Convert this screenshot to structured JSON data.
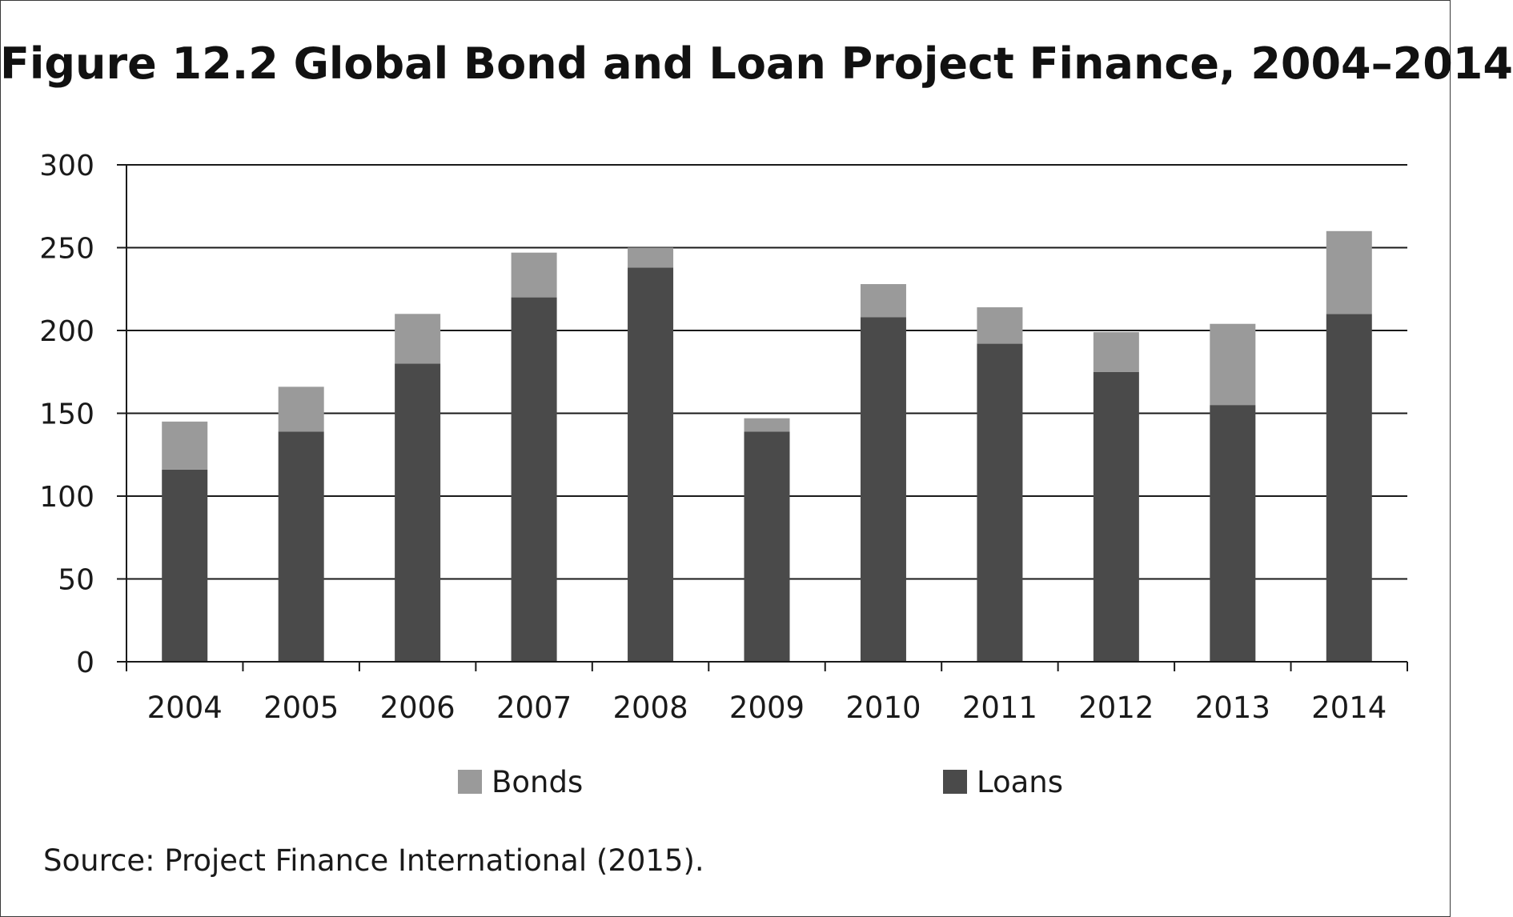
{
  "chart_data": {
    "type": "bar",
    "stacked": true,
    "title": "Figure 12.2   Global Bond and Loan Project Finance, 2004–2014",
    "xlabel": "",
    "ylabel": "",
    "ylim": [
      0,
      300
    ],
    "yticks": [
      0,
      50,
      100,
      150,
      200,
      250,
      300
    ],
    "grid": true,
    "legend_position": "bottom",
    "categories": [
      "2004",
      "2005",
      "2006",
      "2007",
      "2008",
      "2009",
      "2010",
      "2011",
      "2012",
      "2013",
      "2014"
    ],
    "series": [
      {
        "name": "Loans",
        "color": "#4a4a4a",
        "values": [
          116,
          139,
          180,
          220,
          238,
          139,
          208,
          192,
          175,
          155,
          210
        ]
      },
      {
        "name": "Bonds",
        "color": "#9a9a9a",
        "values": [
          29,
          27,
          30,
          27,
          12,
          8,
          20,
          22,
          24,
          49,
          50
        ]
      }
    ],
    "legend_order": [
      "Bonds",
      "Loans"
    ],
    "source": "Source: Project Finance International (2015)."
  }
}
